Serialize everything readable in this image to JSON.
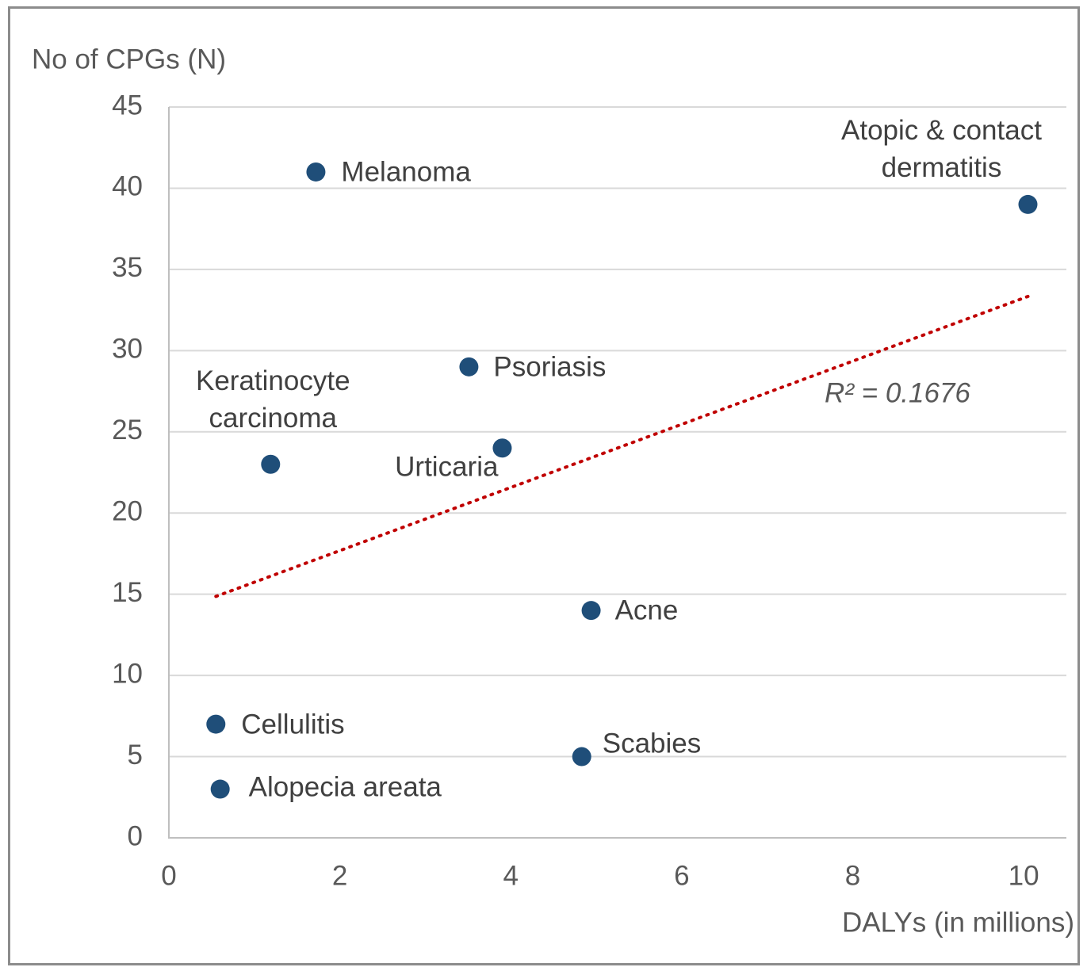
{
  "chart_data": {
    "type": "scatter",
    "ylabel": "No of CPGs (N)",
    "xlabel": "DALYs (in millions)",
    "x": [
      1.72,
      10.05,
      3.51,
      1.19,
      3.9,
      4.94,
      0.55,
      4.83,
      0.6
    ],
    "series": [
      {
        "name": null,
        "color": "#1f4e79",
        "values": [
          41,
          39,
          29,
          23,
          24,
          14,
          7,
          5,
          3
        ]
      }
    ],
    "point_labels": [
      "Melanoma",
      "Atopic & contact dermatitis",
      "Psoriasis",
      "Keratinocyte carcinoma",
      "Urticaria",
      "Acne",
      "Cellulitis",
      "Scabies",
      "Alopecia areata"
    ],
    "trendline": {
      "type": "linear",
      "color": "#c00000",
      "annotation": "R² = 0.1676"
    },
    "xlim": [
      0,
      10.5
    ],
    "xticks": [
      0,
      2,
      4,
      6,
      8,
      10
    ],
    "ylim": [
      0,
      45
    ],
    "yticks": [
      0,
      5,
      10,
      15,
      20,
      25,
      30,
      35,
      40,
      45
    ],
    "grid": true
  }
}
